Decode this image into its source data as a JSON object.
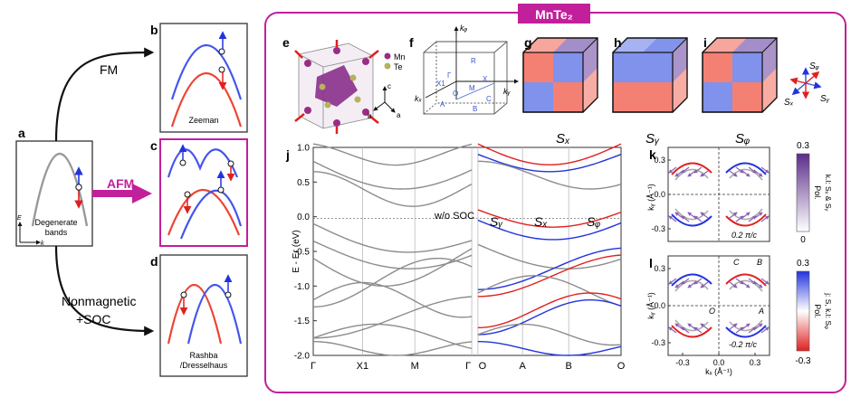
{
  "title": "MnTe₂",
  "panels": {
    "a": {
      "letter": "a",
      "caption_l1": "Degenerate",
      "caption_l2": "bands",
      "axis_e": "E",
      "axis_k": "k"
    },
    "b": {
      "letter": "b",
      "caption": "Zeeman"
    },
    "c": {
      "letter": "c"
    },
    "d": {
      "letter": "d",
      "caption_l1": "Rashba",
      "caption_l2": "/Dresselhaus"
    },
    "e": {
      "letter": "e",
      "legend_mn": "Mn",
      "legend_te": "Te",
      "axis_a": "a",
      "axis_b": "b",
      "axis_c": "c"
    },
    "f": {
      "letter": "f",
      "kz": "kᵩ",
      "ky": "kᵧ",
      "kx": "kₓ",
      "points": {
        "R": "R",
        "X": "X",
        "X1": "X1",
        "Gamma": "Γ",
        "M": "M",
        "A": "A",
        "O": "O",
        "B": "B",
        "C": "C"
      }
    },
    "g": {
      "letter": "g",
      "label": "Sₓ"
    },
    "h": {
      "letter": "h",
      "label": "Sᵧ"
    },
    "i": {
      "letter": "i",
      "label": "Sᵩ"
    },
    "spin_axes": {
      "sz": "Sᵩ",
      "sx": "Sₓ",
      "sy": "Sᵧ"
    },
    "j": {
      "letter": "j",
      "ylabel": "E - Eғ (eV)",
      "note": "w/o SOC",
      "sy": "Sᵧ",
      "sx": "Sₓ",
      "sz": "Sᵩ"
    },
    "k": {
      "letter": "k",
      "scale": "0.2 π/c",
      "ylabel": "kᵧ (Å⁻¹)"
    },
    "l": {
      "letter": "l",
      "scale": "-0.2 π/c",
      "ylabel": "kᵧ (Å⁻¹)",
      "xlabel": "kₓ (Å⁻¹)",
      "C": "C",
      "B": "B",
      "O": "O",
      "A": "A"
    }
  },
  "arrows": {
    "fm": "FM",
    "afm": "AFM",
    "nonmag": "Nonmagnetic",
    "soc": "+SOC"
  },
  "colorbars": {
    "top": {
      "max": "0.3",
      "min": "0",
      "pol": "Pol.",
      "label": "k.l: Sₓ & Sᵧ"
    },
    "bottom": {
      "max": "0.3",
      "min": "-0.3",
      "pol": "Pol.",
      "label": "j: S, k.l: Sᵩ"
    }
  },
  "ticks": {
    "j_y": [
      "1.0",
      "0.5",
      "0.0",
      "-0.5",
      "-1.0",
      "-1.5",
      "-2.0"
    ],
    "j_x": [
      "Γ",
      "X1",
      "M",
      "Γ",
      "O",
      "A",
      "B",
      "O"
    ],
    "kl_y": [
      "0.3",
      "0.0",
      "-0.3"
    ],
    "kl_x": [
      "-0.3",
      "0.0",
      "0.3"
    ]
  },
  "colors": {
    "frame": "#c21f9b",
    "blue": "#2233dd",
    "red": "#e02020",
    "gray": "#8c8c8c",
    "mn": "#9a2c86",
    "te": "#b8b060"
  }
}
